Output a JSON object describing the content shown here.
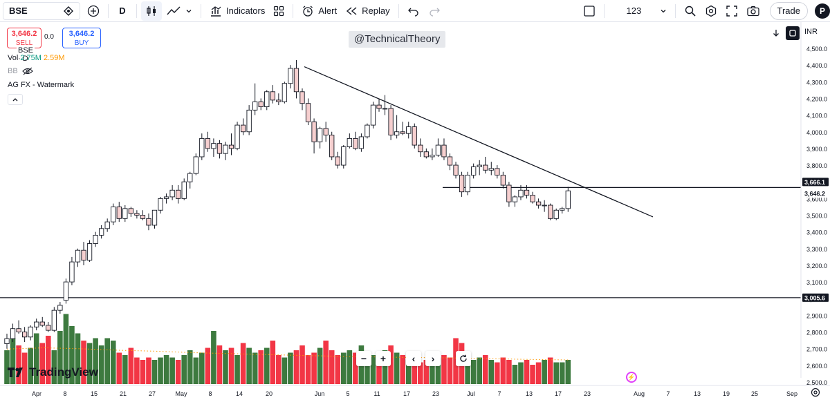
{
  "toolbar": {
    "symbol": "BSE",
    "interval": "D",
    "indicators_label": "Indicators",
    "alert_label": "Alert",
    "replay_label": "Replay",
    "layout_name": "123",
    "trade_label": "Trade",
    "avatar_letter": "P"
  },
  "legend": {
    "sell_price": "3,646.2",
    "sell_label": "SELL",
    "spread": "0.0",
    "buy_price": "3,646.2",
    "buy_label": "BUY",
    "symbol_line": "BSE · D",
    "vol_label": "Vol",
    "vol_value": "2.75M",
    "vol_ma": "2.59M",
    "bb_label": "BB",
    "watermark_label": "AG FX - Watermark"
  },
  "watermark_text": "@TechnicalTheory",
  "logo_text": "TradingView",
  "currency": "INR",
  "colors": {
    "up": "#ffffff",
    "up_border": "#131722",
    "down": "#f6cfcf",
    "down_border": "#131722",
    "vol_up": "#3d7a3f",
    "vol_down": "#f23645",
    "ma": "#ff9800"
  },
  "chart_data": {
    "type": "candlestick",
    "symbol": "BSE",
    "interval": "D",
    "y_axis": {
      "min": 2500,
      "max": 4500,
      "ticks": [
        "4,500.0",
        "4,400.0",
        "4,300.0",
        "4,200.0",
        "4,100.0",
        "4,000.0",
        "3,900.0",
        "3,800.0",
        "3,700.0",
        "3,600.0",
        "3,500.0",
        "3,400.0",
        "3,300.0",
        "3,200.0",
        "3,100.0",
        "3,000.0",
        "2,900.0",
        "2,800.0",
        "2,700.0",
        "2,600.0",
        "2,500.0"
      ]
    },
    "x_axis": {
      "ticks": [
        "Apr",
        "8",
        "15",
        "21",
        "27",
        "May",
        "8",
        "14",
        "20",
        "Jun",
        "5",
        "11",
        "17",
        "23",
        "Jul",
        "7",
        "13",
        "17",
        "23",
        "Aug",
        "7",
        "13",
        "19",
        "25",
        "Sep"
      ]
    },
    "price_labels": {
      "resistance": "3,666.1",
      "last": "3,646.2",
      "support": "3,005.6"
    },
    "horizontal_levels": [
      3666.1,
      3005.6
    ],
    "trendline": {
      "from": [
        4390,
        0
      ],
      "to": [
        3490,
        0
      ]
    },
    "candles": [
      [
        2730,
        2790,
        2700,
        2760
      ],
      [
        2760,
        2850,
        2740,
        2820
      ],
      [
        2820,
        2870,
        2790,
        2800
      ],
      [
        2800,
        2830,
        2740,
        2770
      ],
      [
        2770,
        2840,
        2750,
        2830
      ],
      [
        2830,
        2880,
        2810,
        2860
      ],
      [
        2860,
        2890,
        2830,
        2840
      ],
      [
        2840,
        2860,
        2800,
        2810
      ],
      [
        2810,
        2950,
        2800,
        2930
      ],
      [
        2930,
        2980,
        2910,
        2960
      ],
      [
        2990,
        3120,
        2970,
        3100
      ],
      [
        3100,
        3250,
        3080,
        3220
      ],
      [
        3220,
        3300,
        3190,
        3290
      ],
      [
        3290,
        3340,
        3200,
        3230
      ],
      [
        3230,
        3350,
        3220,
        3330
      ],
      [
        3330,
        3400,
        3310,
        3380
      ],
      [
        3380,
        3440,
        3360,
        3420
      ],
      [
        3420,
        3480,
        3400,
        3460
      ],
      [
        3460,
        3570,
        3440,
        3550
      ],
      [
        3550,
        3580,
        3460,
        3480
      ],
      [
        3480,
        3560,
        3460,
        3540
      ],
      [
        3540,
        3550,
        3490,
        3510
      ],
      [
        3510,
        3530,
        3480,
        3500
      ],
      [
        3500,
        3530,
        3470,
        3480
      ],
      [
        3480,
        3510,
        3410,
        3440
      ],
      [
        3440,
        3530,
        3420,
        3530
      ],
      [
        3530,
        3610,
        3510,
        3600
      ],
      [
        3600,
        3630,
        3570,
        3610
      ],
      [
        3610,
        3680,
        3590,
        3650
      ],
      [
        3650,
        3680,
        3570,
        3600
      ],
      [
        3600,
        3720,
        3590,
        3700
      ],
      [
        3700,
        3760,
        3660,
        3750
      ],
      [
        3750,
        3870,
        3740,
        3850
      ],
      [
        3850,
        3990,
        3830,
        3960
      ],
      [
        3960,
        4000,
        3880,
        3900
      ],
      [
        3900,
        3960,
        3850,
        3930
      ],
      [
        3930,
        3950,
        3840,
        3870
      ],
      [
        3870,
        3940,
        3830,
        3920
      ],
      [
        3920,
        3990,
        3860,
        3900
      ],
      [
        3900,
        4060,
        3890,
        4040
      ],
      [
        4040,
        4080,
        3980,
        4000
      ],
      [
        4000,
        4160,
        3980,
        4130
      ],
      [
        4130,
        4290,
        4100,
        4180
      ],
      [
        4180,
        4200,
        4130,
        4150
      ],
      [
        4150,
        4250,
        4130,
        4240
      ],
      [
        4240,
        4280,
        4170,
        4190
      ],
      [
        4190,
        4230,
        4160,
        4180
      ],
      [
        4180,
        4300,
        4170,
        4290
      ],
      [
        4290,
        4400,
        4260,
        4380
      ],
      [
        4380,
        4430,
        4200,
        4240
      ],
      [
        4240,
        4260,
        4130,
        4170
      ],
      [
        4170,
        4200,
        4040,
        4060
      ],
      [
        4060,
        4080,
        3870,
        3940
      ],
      [
        3940,
        4030,
        3900,
        4020
      ],
      [
        4020,
        4060,
        3940,
        3980
      ],
      [
        3980,
        4000,
        3830,
        3850
      ],
      [
        3850,
        3880,
        3780,
        3800
      ],
      [
        3800,
        3920,
        3780,
        3910
      ],
      [
        3910,
        3990,
        3900,
        3960
      ],
      [
        3960,
        4000,
        3890,
        3900
      ],
      [
        3900,
        3990,
        3880,
        3970
      ],
      [
        3970,
        4050,
        3960,
        4040
      ],
      [
        4040,
        4180,
        4020,
        4160
      ],
      [
        4160,
        4200,
        4120,
        4140
      ],
      [
        4140,
        4220,
        4100,
        4140
      ],
      [
        4140,
        4160,
        3950,
        3980
      ],
      [
        3980,
        4100,
        3960,
        4000
      ],
      [
        4000,
        4060,
        3980,
        3990
      ],
      [
        3990,
        4060,
        3960,
        4030
      ],
      [
        4030,
        4050,
        3900,
        3920
      ],
      [
        3920,
        3960,
        3850,
        3880
      ],
      [
        3880,
        3900,
        3840,
        3850
      ],
      [
        3850,
        3900,
        3830,
        3860
      ],
      [
        3860,
        3960,
        3850,
        3920
      ],
      [
        3920,
        3960,
        3830,
        3850
      ],
      [
        3850,
        3870,
        3770,
        3800
      ],
      [
        3800,
        3820,
        3720,
        3740
      ],
      [
        3740,
        3760,
        3610,
        3640
      ],
      [
        3640,
        3760,
        3620,
        3740
      ],
      [
        3740,
        3810,
        3720,
        3790
      ],
      [
        3790,
        3830,
        3740,
        3800
      ],
      [
        3800,
        3850,
        3750,
        3770
      ],
      [
        3770,
        3820,
        3740,
        3780
      ],
      [
        3780,
        3800,
        3720,
        3740
      ],
      [
        3740,
        3760,
        3660,
        3680
      ],
      [
        3680,
        3700,
        3550,
        3580
      ],
      [
        3580,
        3620,
        3550,
        3610
      ],
      [
        3610,
        3680,
        3590,
        3650
      ],
      [
        3650,
        3680,
        3600,
        3620
      ],
      [
        3620,
        3640,
        3570,
        3580
      ],
      [
        3580,
        3600,
        3540,
        3560
      ],
      [
        3560,
        3590,
        3520,
        3560
      ],
      [
        3560,
        3570,
        3470,
        3480
      ],
      [
        3480,
        3540,
        3470,
        3530
      ],
      [
        3530,
        3550,
        3510,
        3540
      ],
      [
        3540,
        3670,
        3520,
        3646
      ]
    ],
    "volume": [
      1.4,
      1.9,
      1.6,
      1.3,
      1.5,
      2.1,
      1.7,
      2.0,
      1.4,
      2.2,
      2.9,
      2.4,
      2.1,
      1.8,
      1.7,
      1.9,
      1.6,
      1.9,
      1.8,
      1.3,
      1.2,
      1.5,
      1.1,
      1.0,
      1.1,
      1.0,
      1.1,
      1.2,
      1.1,
      1.0,
      1.2,
      1.4,
      1.1,
      1.3,
      1.5,
      2.2,
      1.6,
      1.4,
      1.5,
      1.2,
      1.7,
      1.5,
      1.3,
      1.4,
      1.5,
      1.8,
      1.2,
      1.1,
      1.3,
      1.4,
      1.6,
      1.2,
      1.3,
      1.5,
      1.8,
      1.4,
      1.2,
      1.3,
      1.4,
      1.3,
      1.6,
      1.2,
      1.2,
      1.1,
      1.4,
      1.6,
      1.3,
      1.2,
      1.0,
      1.1,
      0.9,
      1.0,
      1.0,
      1.1,
      1.2,
      1.1,
      1.9,
      1.7,
      1.2,
      1.0,
      1.1,
      1.2,
      1.0,
      0.9,
      1.1,
      1.0,
      0.8,
      0.9,
      1.0,
      0.8,
      0.9,
      1.0,
      1.1,
      0.9,
      0.9,
      1.0
    ],
    "volume_ma": [
      1.45,
      1.5,
      1.46,
      1.4,
      1.36,
      1.3,
      1.26,
      1.22,
      1.18,
      1.15,
      1.12,
      1.1,
      1.08,
      1.05,
      1.02,
      1.0
    ]
  }
}
